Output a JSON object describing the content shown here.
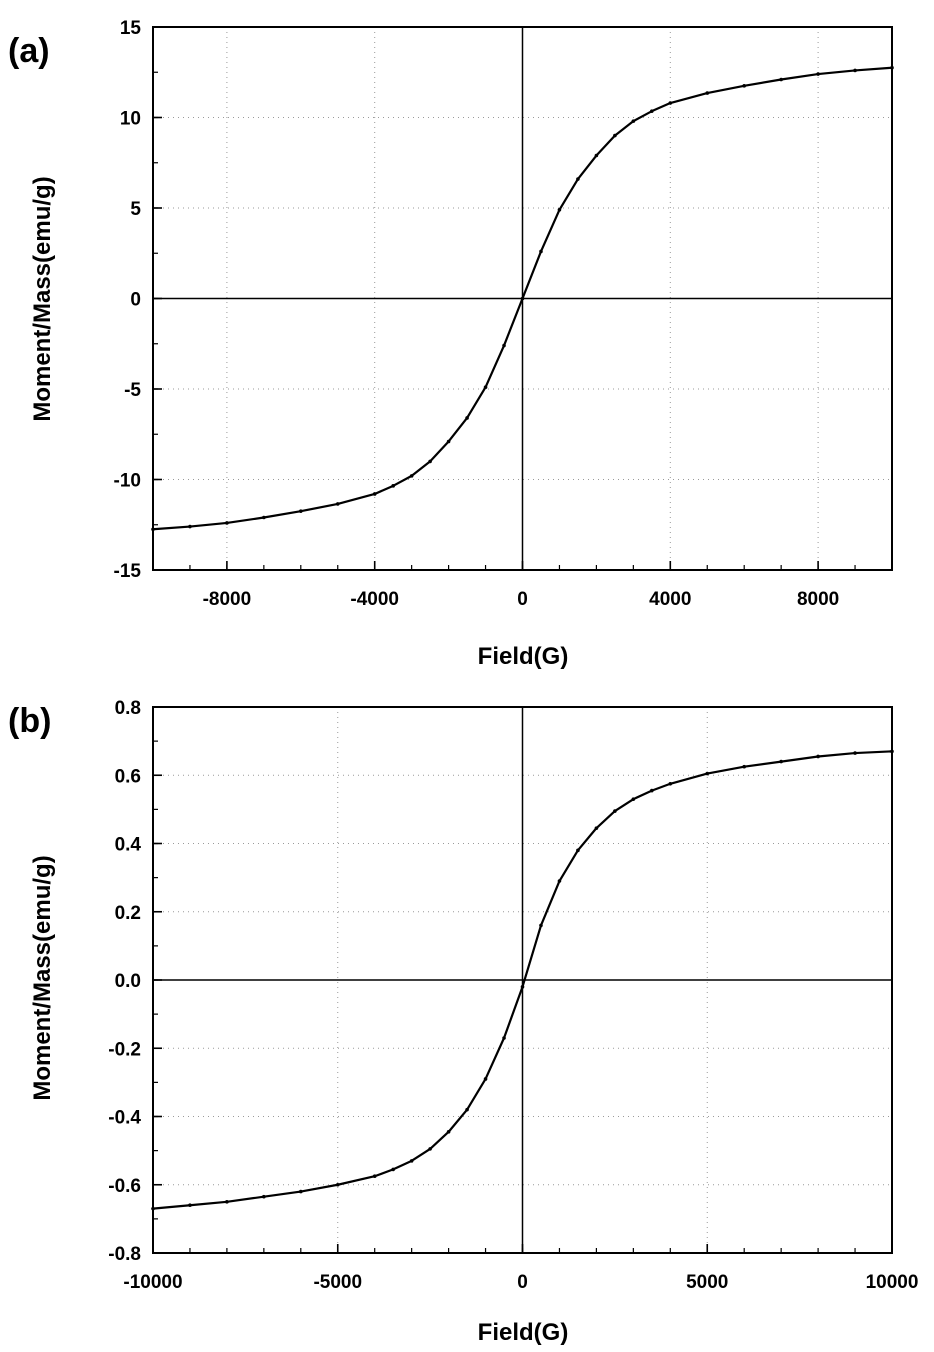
{
  "chart_data": [
    {
      "type": "scatter",
      "panel_label": "(a)",
      "xlabel": "Field(G)",
      "ylabel": "Moment/Mass(emu/g)",
      "xlim": [
        -10000,
        10000
      ],
      "ylim": [
        -15,
        15
      ],
      "xticks": [
        -8000,
        -4000,
        0,
        4000,
        8000
      ],
      "xtick_labels": [
        "-8000",
        "-4000",
        "0",
        "4000",
        "8000"
      ],
      "yticks": [
        -15,
        -10,
        -5,
        0,
        5,
        10,
        15
      ],
      "ytick_labels": [
        "-15",
        "-10",
        "-5",
        "0",
        "5",
        "10",
        "15"
      ],
      "grid": true,
      "zero_lines": true,
      "series": [
        {
          "color": "#000000",
          "x": [
            -10000,
            -9000,
            -8000,
            -7000,
            -6000,
            -5000,
            -4000,
            -3500,
            -3000,
            -2500,
            -2000,
            -1500,
            -1000,
            -500,
            0,
            500,
            1000,
            1500,
            2000,
            2500,
            3000,
            3500,
            4000,
            5000,
            6000,
            7000,
            8000,
            9000,
            10000
          ],
          "y": [
            -12.75,
            -12.6,
            -12.4,
            -12.1,
            -11.75,
            -11.35,
            -10.8,
            -10.35,
            -9.8,
            -9.0,
            -7.9,
            -6.6,
            -4.9,
            -2.6,
            0,
            2.6,
            4.9,
            6.6,
            7.9,
            9.0,
            9.8,
            10.35,
            10.8,
            11.35,
            11.75,
            12.1,
            12.4,
            12.6,
            12.75
          ]
        }
      ]
    },
    {
      "type": "scatter",
      "panel_label": "(b)",
      "xlabel": "Field(G)",
      "ylabel": "Moment/Mass(emu/g)",
      "xlim": [
        -10000,
        10000
      ],
      "ylim": [
        -0.8,
        0.8
      ],
      "xticks": [
        -10000,
        -5000,
        0,
        5000,
        10000
      ],
      "xtick_labels": [
        "-10000",
        "-5000",
        "0",
        "5000",
        "10000"
      ],
      "yticks": [
        -0.8,
        -0.6,
        -0.4,
        -0.2,
        0.0,
        0.2,
        0.4,
        0.6,
        0.8
      ],
      "ytick_labels": [
        "-0.8",
        "-0.6",
        "-0.4",
        "-0.2",
        "0.0",
        "0.2",
        "0.4",
        "0.6",
        "0.8"
      ],
      "grid": true,
      "zero_lines": true,
      "series": [
        {
          "color": "#000000",
          "x": [
            -10000,
            -9000,
            -8000,
            -7000,
            -6000,
            -5000,
            -4000,
            -3500,
            -3000,
            -2500,
            -2000,
            -1500,
            -1000,
            -500,
            0,
            500,
            1000,
            1500,
            2000,
            2500,
            3000,
            3500,
            4000,
            5000,
            6000,
            7000,
            8000,
            9000,
            10000
          ],
          "y": [
            -0.67,
            -0.66,
            -0.65,
            -0.635,
            -0.62,
            -0.6,
            -0.575,
            -0.555,
            -0.53,
            -0.495,
            -0.445,
            -0.38,
            -0.29,
            -0.17,
            -0.02,
            0.16,
            0.29,
            0.38,
            0.445,
            0.495,
            0.53,
            0.555,
            0.575,
            0.605,
            0.625,
            0.64,
            0.655,
            0.665,
            0.67
          ]
        }
      ]
    }
  ]
}
